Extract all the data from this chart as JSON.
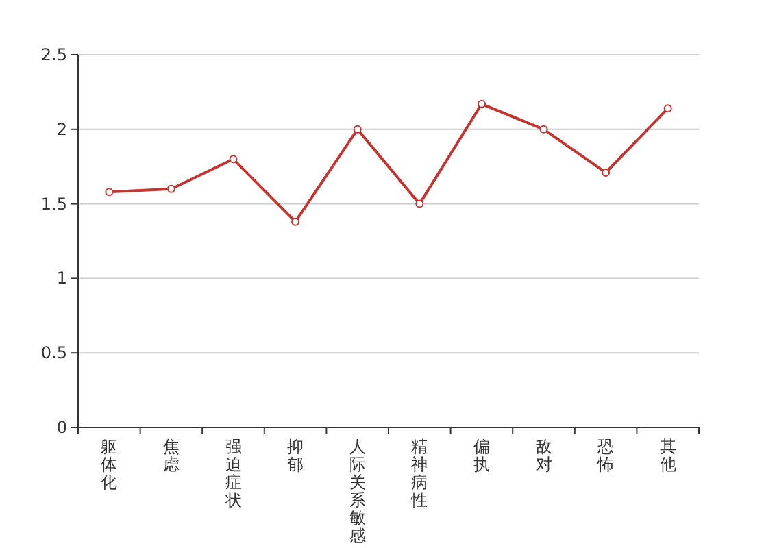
{
  "chart_data": {
    "type": "line",
    "categories": [
      "躯体化",
      "焦虑",
      "强迫症状",
      "抑郁",
      "人际关系敏感",
      "精神病性",
      "偏执",
      "敌对",
      "恐怖",
      "其他"
    ],
    "values": [
      1.58,
      1.6,
      1.8,
      1.38,
      2.0,
      1.5,
      2.17,
      2.0,
      1.71,
      2.14
    ],
    "color": "#c23531",
    "ylim": [
      0,
      2.5
    ],
    "yticks": [
      0,
      0.5,
      1,
      1.5,
      2,
      2.5
    ],
    "grid": "y",
    "marker": "circle"
  }
}
